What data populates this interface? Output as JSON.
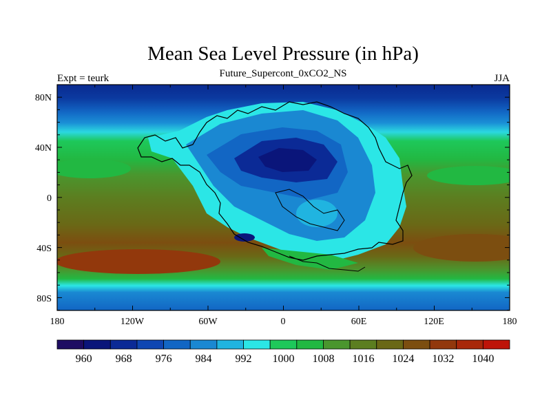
{
  "title": "Mean Sea Level Pressure (in hPa)",
  "subtitle": "Future_Supercont_0xCO2_NS",
  "left_label": "Expt = teurk",
  "right_label": "JJA",
  "lon_ticks": [
    "180",
    "120W",
    "60W",
    "0",
    "60E",
    "120E",
    "180"
  ],
  "lat_ticks": [
    "80N",
    "40N",
    "0",
    "40S",
    "80S"
  ],
  "colorbar": {
    "colors": [
      "#1e0c62",
      "#0a157a",
      "#0b2a96",
      "#0f46b2",
      "#1266c4",
      "#1a88d2",
      "#20b4e0",
      "#2be6e6",
      "#1ec85a",
      "#22b842",
      "#4a962e",
      "#5c7e20",
      "#6a6816",
      "#7c4e10",
      "#92380c",
      "#a8280a",
      "#be1408"
    ],
    "labels": [
      "960",
      "968",
      "976",
      "984",
      "992",
      "1000",
      "1008",
      "1016",
      "1024",
      "1032",
      "1040"
    ]
  }
}
